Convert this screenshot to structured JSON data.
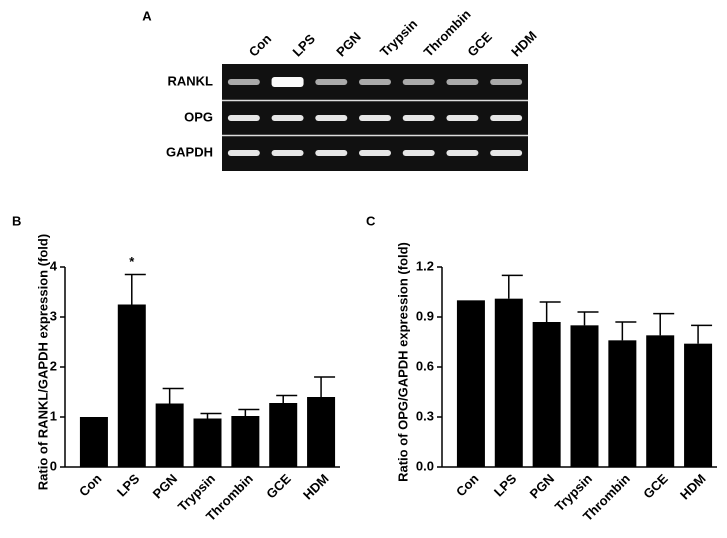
{
  "figure": {
    "panel_a": {
      "label": "A",
      "lanes": [
        "Con",
        "LPS",
        "PGN",
        "Trypsin",
        "Thrombin",
        "GCE",
        "HDM"
      ],
      "rows": [
        "RANKL",
        "OPG",
        "GAPDH"
      ]
    }
  },
  "chart_data": [
    {
      "type": "bar",
      "panel_label": "B",
      "y_label": "Ratio of RANKL/GAPDH expression (fold)",
      "categories": [
        "Con",
        "LPS",
        "PGN",
        "Trypsin",
        "Thrombin",
        "GCE",
        "HDM"
      ],
      "values": [
        1.0,
        3.25,
        1.27,
        0.97,
        1.02,
        1.28,
        1.4
      ],
      "errors": [
        0,
        0.6,
        0.3,
        0.1,
        0.13,
        0.15,
        0.4
      ],
      "significance": [
        null,
        "*",
        null,
        null,
        null,
        null,
        null
      ],
      "color": "#000000",
      "ylim": [
        0,
        4
      ],
      "yticks": [
        0,
        1,
        2,
        3,
        4
      ]
    },
    {
      "type": "bar",
      "panel_label": "C",
      "y_label": "Ratio of OPG/GAPDH expression (fold)",
      "categories": [
        "Con",
        "LPS",
        "PGN",
        "Trypsin",
        "Thrombin",
        "GCE",
        "HDM"
      ],
      "values": [
        1.0,
        1.01,
        0.87,
        0.85,
        0.76,
        0.79,
        0.74
      ],
      "errors": [
        0,
        0.14,
        0.12,
        0.08,
        0.11,
        0.13,
        0.11
      ],
      "color": "#000000",
      "ylim": [
        0,
        1.2
      ],
      "yticks": [
        {
          "value": 0,
          "label": "0.0"
        },
        0.3,
        0.6,
        0.9,
        1.2
      ]
    }
  ]
}
